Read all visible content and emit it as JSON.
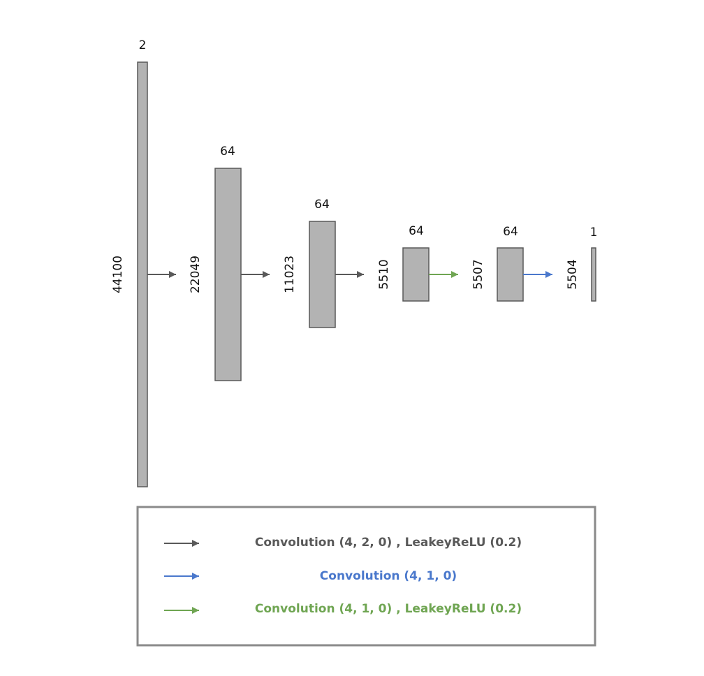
{
  "layers": [
    {
      "channels": "2",
      "length": "44100"
    },
    {
      "channels": "64",
      "length": "22049"
    },
    {
      "channels": "64",
      "length": "11023"
    },
    {
      "channels": "64",
      "length": "5510"
    },
    {
      "channels": "64",
      "length": "5507"
    },
    {
      "channels": "1",
      "length": "5504"
    }
  ],
  "colors": {
    "gray": "#595959",
    "blue": "#4a78cc",
    "green": "#6fa552"
  },
  "legend": {
    "items": [
      {
        "text": "Convolution (4, 2, 0) , LeakeyReLU (0.2)",
        "color": "#595959"
      },
      {
        "text": "Convolution (4, 1, 0)",
        "color": "#4a78cc"
      },
      {
        "text": "Convolution (4, 1, 0) , LeakeyReLU (0.2)",
        "color": "#6fa552"
      }
    ]
  }
}
